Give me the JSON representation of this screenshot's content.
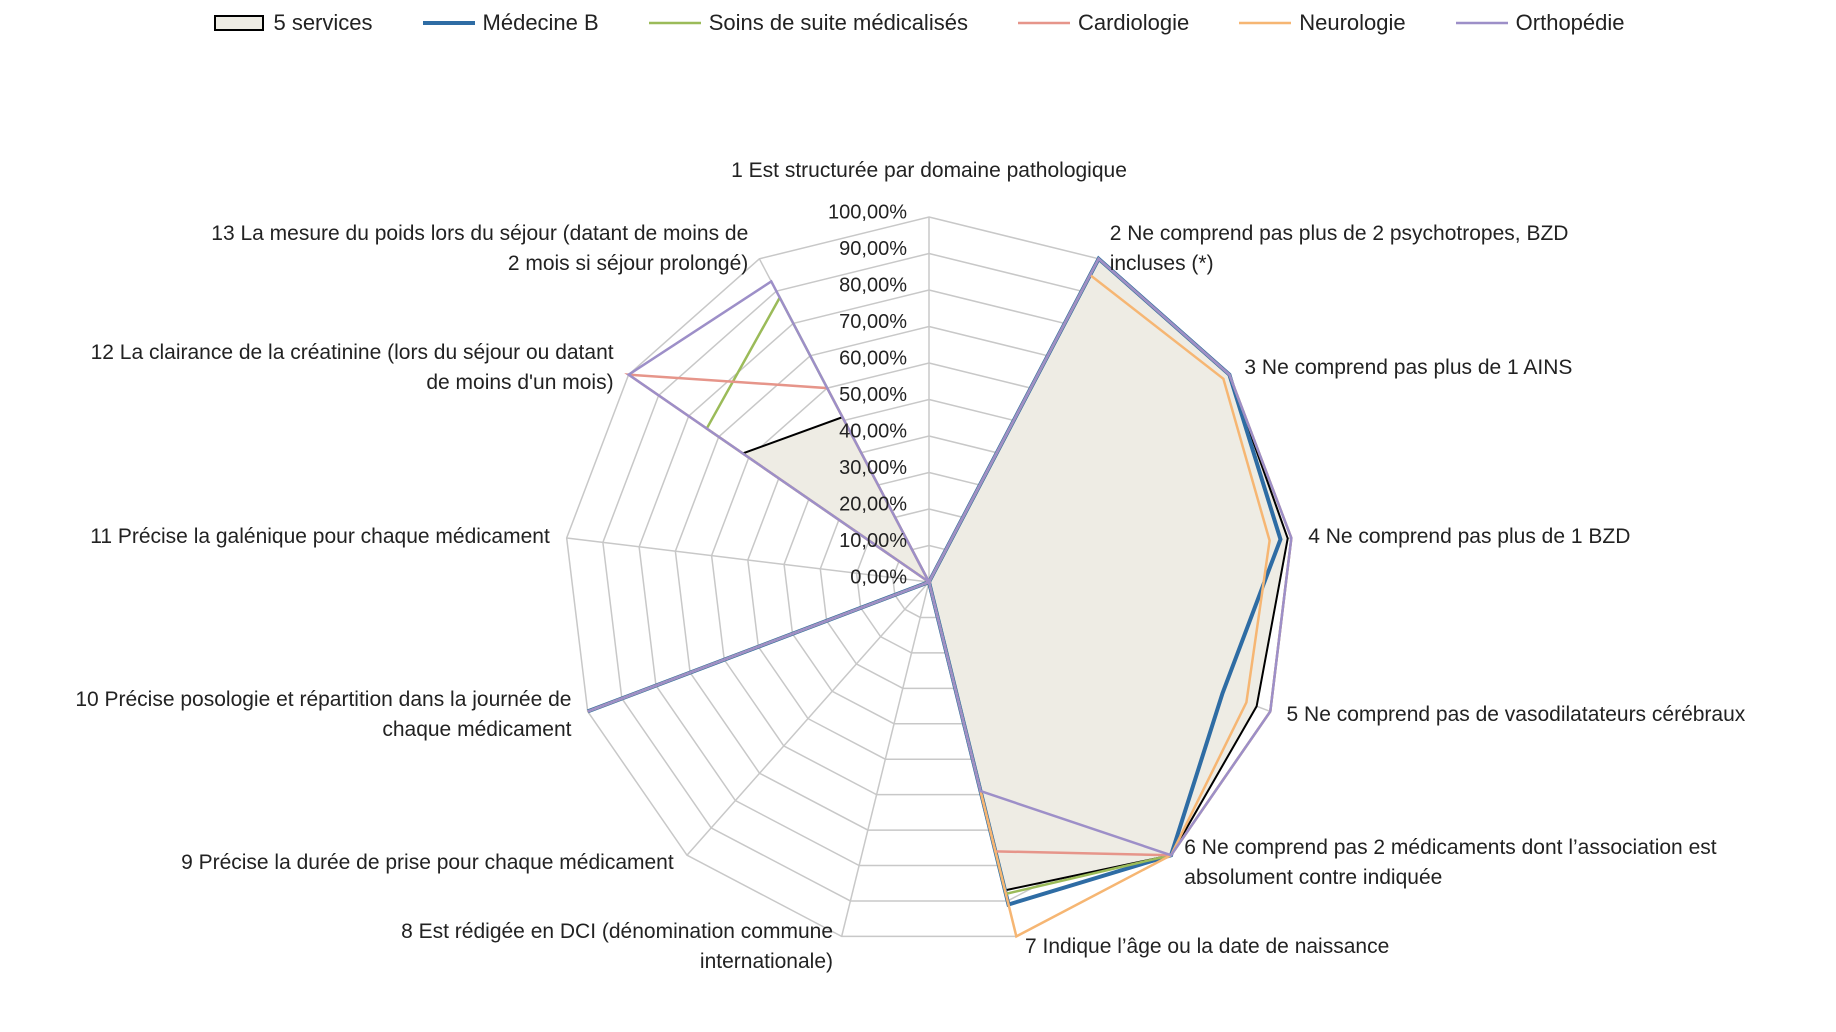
{
  "chart_data": {
    "type": "radar",
    "categories": [
      "1 Est structurée par domaine pathologique",
      "2 Ne comprend pas plus de 2 psychotropes, BZD incluses (*)",
      "3 Ne comprend pas plus de 1 AINS",
      "4 Ne comprend pas plus de 1 BZD",
      "5 Ne comprend pas de vasodilatateurs cérébraux",
      "6 Ne comprend pas 2 médicaments dont l’association est absolument contre indiquée",
      "7 Indique l’âge ou la date de naissance",
      "8 Est rédigée en DCI (dénomination commune internationale)",
      "9 Précise la durée de prise pour chaque médicament",
      "10 Précise posologie et répartition dans la journée de chaque médicament",
      "11 Précise la galénique  pour chaque médicament",
      "12 La clairance de la créatinine (lors du séjour ou datant de moins d'un mois)",
      "13 La mesure du poids lors du séjour (datant de moins de 2 mois si séjour prolongé)"
    ],
    "series": [
      {
        "name": "5 services",
        "color": "#000000",
        "fill": "#eeece4",
        "values": [
          0,
          100,
          100,
          99,
          96,
          100,
          87,
          0,
          0,
          100,
          0,
          62,
          51
        ]
      },
      {
        "name": "Médecine B",
        "color": "#2e6ca4",
        "values": [
          0,
          100,
          100,
          97,
          86,
          100,
          91,
          0,
          0,
          100,
          0,
          0,
          0
        ]
      },
      {
        "name": "Soins de suite médicalisés",
        "color": "#9bbb59",
        "values": [
          0,
          100,
          100,
          100,
          100,
          100,
          88,
          0,
          0,
          100,
          0,
          74,
          88
        ]
      },
      {
        "name": "Cardiologie",
        "color": "#e6958a",
        "values": [
          0,
          100,
          100,
          100,
          100,
          100,
          76,
          0,
          0,
          98,
          0,
          100,
          60
        ]
      },
      {
        "name": "Neurologie",
        "color": "#f6b673",
        "values": [
          0,
          95,
          98,
          94,
          93,
          100,
          100,
          0,
          0,
          100,
          0,
          27,
          0
        ]
      },
      {
        "name": "Orthopédie",
        "color": "#9d8fc8",
        "values": [
          0,
          100,
          100,
          100,
          100,
          100,
          59,
          0,
          0,
          100,
          0,
          100,
          93
        ]
      }
    ],
    "rlim": [
      0,
      100
    ],
    "rticks": [
      {
        "value": 0,
        "label": "0,00%"
      },
      {
        "value": 10,
        "label": "10,00%"
      },
      {
        "value": 20,
        "label": "20,00%"
      },
      {
        "value": 30,
        "label": "30,00%"
      },
      {
        "value": 40,
        "label": "40,00%"
      },
      {
        "value": 50,
        "label": "50,00%"
      },
      {
        "value": 60,
        "label": "60,00%"
      },
      {
        "value": 70,
        "label": "70,00%"
      },
      {
        "value": 80,
        "label": "80,00%"
      },
      {
        "value": 90,
        "label": "90,00%"
      },
      {
        "value": 100,
        "label": "100,00%"
      }
    ],
    "legend": "top"
  }
}
